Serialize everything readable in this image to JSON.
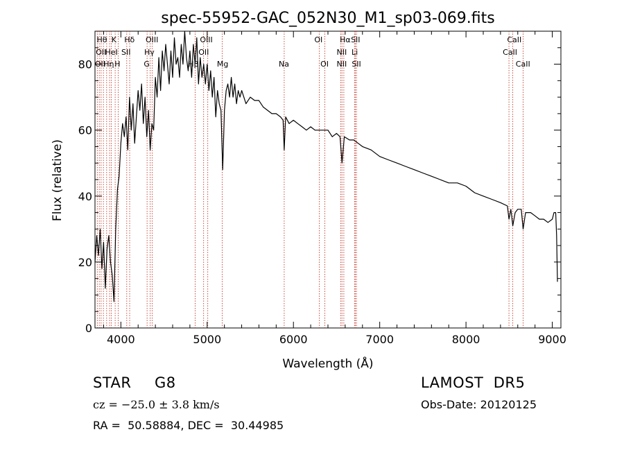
{
  "chart_data": {
    "type": "line",
    "title": "spec-55952-GAC_052N30_M1_sp03-069.fits",
    "xlabel": "Wavelength (Å)",
    "ylabel": "Flux (relative)",
    "xlim": [
      3700,
      9100
    ],
    "ylim": [
      0,
      90
    ],
    "xticks": [
      4000,
      5000,
      6000,
      7000,
      8000,
      9000
    ],
    "yticks": [
      0,
      20,
      40,
      60,
      80
    ],
    "grid": false,
    "series": [
      {
        "color": "#000000",
        "x": [
          3700,
          3720,
          3740,
          3760,
          3780,
          3800,
          3820,
          3840,
          3860,
          3880,
          3900,
          3920,
          3940,
          3960,
          3980,
          4000,
          4020,
          4040,
          4060,
          4080,
          4100,
          4120,
          4140,
          4160,
          4180,
          4200,
          4220,
          4240,
          4260,
          4280,
          4300,
          4320,
          4340,
          4360,
          4380,
          4400,
          4420,
          4440,
          4460,
          4480,
          4500,
          4520,
          4540,
          4560,
          4580,
          4600,
          4620,
          4640,
          4660,
          4680,
          4700,
          4720,
          4740,
          4760,
          4780,
          4800,
          4820,
          4840,
          4860,
          4880,
          4900,
          4920,
          4940,
          4960,
          4980,
          5000,
          5020,
          5040,
          5060,
          5080,
          5100,
          5120,
          5140,
          5160,
          5180,
          5200,
          5220,
          5240,
          5260,
          5280,
          5300,
          5320,
          5340,
          5360,
          5380,
          5400,
          5450,
          5500,
          5550,
          5600,
          5650,
          5700,
          5750,
          5800,
          5850,
          5880,
          5893,
          5910,
          5950,
          6000,
          6050,
          6100,
          6150,
          6200,
          6250,
          6300,
          6350,
          6400,
          6450,
          6500,
          6540,
          6563,
          6590,
          6650,
          6700,
          6750,
          6800,
          6900,
          7000,
          7100,
          7200,
          7300,
          7400,
          7500,
          7600,
          7700,
          7800,
          7900,
          8000,
          8100,
          8200,
          8300,
          8400,
          8480,
          8498,
          8520,
          8542,
          8570,
          8600,
          8640,
          8662,
          8690,
          8750,
          8800,
          8850,
          8900,
          8950,
          9000,
          9020,
          9040,
          9050,
          9060
        ],
        "y": [
          20,
          28,
          22,
          30,
          18,
          26,
          12,
          24,
          28,
          20,
          16,
          8,
          30,
          42,
          46,
          56,
          62,
          58,
          64,
          54,
          70,
          60,
          68,
          56,
          64,
          72,
          66,
          74,
          62,
          70,
          58,
          66,
          54,
          62,
          60,
          76,
          70,
          82,
          72,
          84,
          78,
          86,
          80,
          74,
          84,
          76,
          88,
          80,
          82,
          76,
          86,
          80,
          90,
          82,
          78,
          84,
          76,
          86,
          80,
          88,
          74,
          82,
          76,
          80,
          74,
          80,
          72,
          78,
          70,
          76,
          64,
          72,
          68,
          66,
          48,
          66,
          72,
          74,
          70,
          76,
          70,
          74,
          68,
          72,
          70,
          72,
          68,
          70,
          69,
          69,
          67,
          66,
          65,
          65,
          64,
          63,
          54,
          64,
          62,
          63,
          62,
          61,
          60,
          61,
          60,
          60,
          60,
          60,
          58,
          59,
          58,
          50,
          58,
          57,
          57,
          56,
          55,
          54,
          52,
          51,
          50,
          49,
          48,
          47,
          46,
          45,
          44,
          44,
          43,
          41,
          40,
          39,
          38,
          37,
          33,
          36,
          31,
          35,
          36,
          36,
          30,
          35,
          35,
          34,
          33,
          33,
          32,
          33,
          35,
          35,
          28,
          14
        ]
      }
    ],
    "line_markers": [
      {
        "wavelength": 3727,
        "label": "OII"
      },
      {
        "wavelength": 3750,
        "label": "Hθ"
      },
      {
        "wavelength": 3771,
        "label": "Hη"
      },
      {
        "wavelength": 3798,
        "label": "Hθ"
      },
      {
        "wavelength": 3835,
        "label": "Hη"
      },
      {
        "wavelength": 3869,
        "label": "HeI"
      },
      {
        "wavelength": 3889,
        "label": "Hθ"
      },
      {
        "wavelength": 3934,
        "label": "K"
      },
      {
        "wavelength": 3969,
        "label": "H"
      },
      {
        "wavelength": 4068,
        "label": "SII"
      },
      {
        "wavelength": 4102,
        "label": "Hδ"
      },
      {
        "wavelength": 4304,
        "label": "G"
      },
      {
        "wavelength": 4340,
        "label": "Hγ"
      },
      {
        "wavelength": 4363,
        "label": "OIII"
      },
      {
        "wavelength": 4861,
        "label": "Hβ"
      },
      {
        "wavelength": 4959,
        "label": "OIII"
      },
      {
        "wavelength": 5007,
        "label": "OIII"
      },
      {
        "wavelength": 5175,
        "label": "Mg"
      },
      {
        "wavelength": 5893,
        "label": "Na"
      },
      {
        "wavelength": 6300,
        "label": "OI"
      },
      {
        "wavelength": 6364,
        "label": "OI"
      },
      {
        "wavelength": 6548,
        "label": "NII"
      },
      {
        "wavelength": 6563,
        "label": "Hα"
      },
      {
        "wavelength": 6584,
        "label": "NII"
      },
      {
        "wavelength": 6708,
        "label": "Li"
      },
      {
        "wavelength": 6717,
        "label": "SII"
      },
      {
        "wavelength": 6731,
        "label": "SII"
      },
      {
        "wavelength": 8498,
        "label": "CaII"
      },
      {
        "wavelength": 8542,
        "label": "CaII"
      },
      {
        "wavelength": 8662,
        "label": "CaII"
      }
    ],
    "label_rows": [
      [
        "Hθ",
        "K",
        "Hδ",
        "OIII",
        "OIII",
        "OI",
        "Hα",
        "SII",
        "CaII"
      ],
      [
        "OII",
        "HeI",
        "SII",
        "Hγ",
        "OII",
        "NII",
        "Li",
        "CaII"
      ],
      [
        "OII",
        "Hη",
        "H",
        "G",
        "Hβ",
        "Mg",
        "Na",
        "OI",
        "NII",
        "SII",
        "CaII"
      ]
    ]
  },
  "info": {
    "object_class": "STAR",
    "subclass": "G8",
    "survey": "LAMOST  DR5",
    "redshift": "cz = −25.0 ± 3.8 km/s",
    "obs_date": "Obs-Date: 20120125",
    "coords": "RA =  50.58884, DEC =  30.44985"
  }
}
